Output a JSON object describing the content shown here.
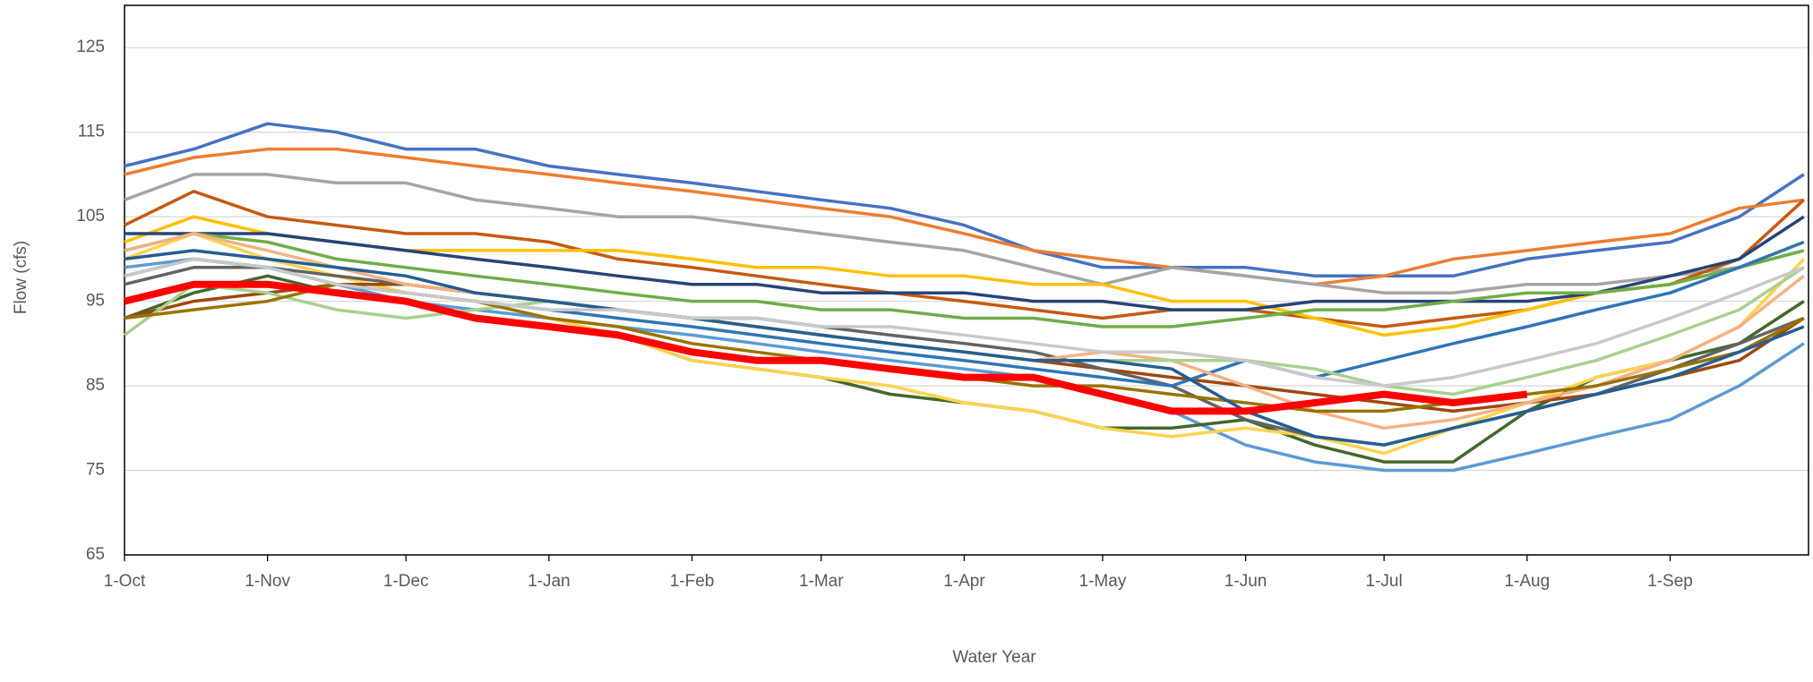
{
  "chart_data": {
    "type": "line",
    "xlabel": "Water Year",
    "ylabel": "Flow (cfs)",
    "x": [
      0,
      15,
      31,
      46,
      61,
      76,
      92,
      107,
      123,
      137,
      151,
      166,
      182,
      197,
      212,
      227,
      243,
      258,
      273,
      288,
      304,
      319,
      335,
      350,
      364
    ],
    "xlim": [
      0,
      365
    ],
    "xticks": [
      {
        "value": 0,
        "label": "1-Oct"
      },
      {
        "value": 31,
        "label": "1-Nov"
      },
      {
        "value": 61,
        "label": "1-Dec"
      },
      {
        "value": 92,
        "label": "1-Jan"
      },
      {
        "value": 123,
        "label": "1-Feb"
      },
      {
        "value": 151,
        "label": "1-Mar"
      },
      {
        "value": 182,
        "label": "1-Apr"
      },
      {
        "value": 212,
        "label": "1-May"
      },
      {
        "value": 243,
        "label": "1-Jun"
      },
      {
        "value": 273,
        "label": "1-Jul"
      },
      {
        "value": 304,
        "label": "1-Aug"
      },
      {
        "value": 335,
        "label": "1-Sep"
      }
    ],
    "ylim": [
      65,
      130
    ],
    "yticks": [
      65,
      75,
      85,
      95,
      105,
      115,
      125
    ],
    "grid": true,
    "series": [
      {
        "color": "#4472c4",
        "values": [
          111,
          113,
          116,
          115,
          113,
          113,
          111,
          110,
          109,
          108,
          107,
          106,
          104,
          101,
          99,
          99,
          99,
          98,
          98,
          98,
          100,
          101,
          102,
          105,
          110
        ]
      },
      {
        "color": "#ed7d31",
        "values": [
          110,
          112,
          113,
          113,
          112,
          111,
          110,
          109,
          108,
          107,
          106,
          105,
          103,
          101,
          100,
          99,
          98,
          97,
          98,
          100,
          101,
          102,
          103,
          106,
          107
        ]
      },
      {
        "color": "#a5a5a5",
        "values": [
          107,
          110,
          110,
          109,
          109,
          107,
          106,
          105,
          105,
          104,
          103,
          102,
          101,
          99,
          97,
          99,
          98,
          97,
          96,
          96,
          97,
          97,
          98,
          99,
          101
        ]
      },
      {
        "color": "#c55a11",
        "values": [
          104,
          108,
          105,
          104,
          103,
          103,
          102,
          100,
          99,
          98,
          97,
          96,
          95,
          94,
          93,
          94,
          94,
          93,
          92,
          93,
          94,
          96,
          97,
          100,
          107
        ]
      },
      {
        "color": "#ffc000",
        "values": [
          102,
          105,
          103,
          102,
          101,
          101,
          101,
          101,
          100,
          99,
          99,
          98,
          98,
          97,
          97,
          95,
          95,
          93,
          91,
          92,
          94,
          96,
          97,
          99,
          102
        ]
      },
      {
        "color": "#264478",
        "values": [
          103,
          103,
          103,
          102,
          101,
          100,
          99,
          98,
          97,
          97,
          96,
          96,
          96,
          95,
          95,
          94,
          94,
          95,
          95,
          95,
          95,
          96,
          98,
          100,
          105
        ]
      },
      {
        "color": "#70ad47",
        "values": [
          101,
          103,
          102,
          100,
          99,
          98,
          97,
          96,
          95,
          95,
          94,
          94,
          93,
          93,
          92,
          92,
          93,
          94,
          94,
          95,
          96,
          96,
          97,
          99,
          101
        ]
      },
      {
        "color": "#5b9bd5",
        "values": [
          99,
          100,
          99,
          97,
          95,
          94,
          93,
          92,
          91,
          90,
          89,
          88,
          87,
          86,
          84,
          82,
          78,
          76,
          75,
          75,
          77,
          79,
          81,
          85,
          90
        ]
      },
      {
        "color": "#43682b",
        "values": [
          93,
          96,
          98,
          96,
          95,
          93,
          92,
          91,
          88,
          87,
          86,
          84,
          83,
          82,
          80,
          80,
          81,
          78,
          76,
          76,
          82,
          86,
          88,
          90,
          95
        ]
      },
      {
        "color": "#ffd34d",
        "values": [
          100,
          103,
          100,
          98,
          96,
          95,
          93,
          91,
          88,
          87,
          86,
          85,
          83,
          82,
          80,
          79,
          80,
          79,
          77,
          80,
          83,
          86,
          88,
          92,
          100
        ]
      },
      {
        "color": "#9e480e",
        "values": [
          93,
          95,
          96,
          97,
          97,
          96,
          95,
          94,
          93,
          92,
          91,
          90,
          89,
          88,
          87,
          86,
          85,
          84,
          83,
          82,
          83,
          84,
          86,
          88,
          93
        ]
      },
      {
        "color": "#636363",
        "values": [
          97,
          99,
          99,
          98,
          97,
          96,
          95,
          94,
          93,
          93,
          92,
          91,
          90,
          89,
          87,
          85,
          81,
          79,
          78,
          80,
          82,
          84,
          87,
          90,
          93
        ]
      },
      {
        "color": "#2e75b6",
        "values": [
          98,
          100,
          99,
          97,
          96,
          95,
          94,
          93,
          92,
          91,
          90,
          89,
          88,
          87,
          86,
          85,
          88,
          86,
          88,
          90,
          92,
          94,
          96,
          99,
          102
        ]
      },
      {
        "color": "#f4b183",
        "values": [
          101,
          103,
          101,
          99,
          97,
          96,
          95,
          94,
          93,
          92,
          91,
          90,
          89,
          88,
          89,
          88,
          85,
          82,
          80,
          81,
          83,
          85,
          88,
          92,
          98
        ]
      },
      {
        "color": "#a9d18e",
        "values": [
          91,
          97,
          96,
          94,
          93,
          94,
          95,
          94,
          93,
          92,
          91,
          90,
          89,
          88,
          88,
          88,
          88,
          87,
          85,
          84,
          86,
          88,
          91,
          94,
          99
        ]
      },
      {
        "color": "#997300",
        "values": [
          93,
          94,
          95,
          97,
          96,
          95,
          93,
          92,
          90,
          89,
          88,
          87,
          86,
          85,
          85,
          84,
          83,
          82,
          82,
          83,
          84,
          85,
          87,
          89,
          93
        ]
      },
      {
        "color": "#255e91",
        "values": [
          100,
          101,
          100,
          99,
          98,
          96,
          95,
          94,
          93,
          92,
          91,
          90,
          89,
          88,
          88,
          87,
          82,
          79,
          78,
          80,
          82,
          84,
          86,
          89,
          92
        ]
      },
      {
        "color": "#c9c9c9",
        "values": [
          98,
          100,
          99,
          97,
          96,
          95,
          94,
          94,
          93,
          93,
          92,
          92,
          91,
          90,
          89,
          89,
          88,
          86,
          85,
          86,
          88,
          90,
          93,
          96,
          99
        ]
      },
      {
        "color": "#ff0000",
        "width": 8,
        "values": [
          95,
          97,
          97,
          96,
          95,
          93,
          92,
          91,
          89,
          88,
          88,
          87,
          86,
          86,
          84,
          82,
          82,
          83,
          84,
          83,
          84,
          null,
          null,
          null,
          null
        ]
      }
    ]
  }
}
